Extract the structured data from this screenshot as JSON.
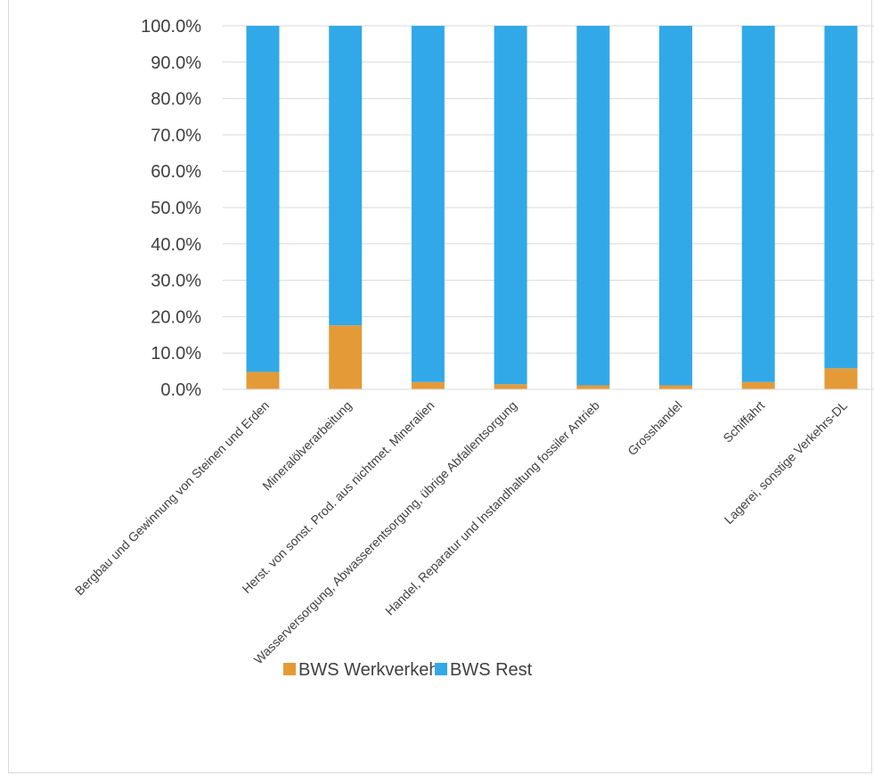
{
  "chart_data": {
    "type": "bar",
    "stacked": true,
    "categories": [
      "Bergbau und Gewinnung von Steinen und Erden",
      "Mineralölverarbeitung",
      "Herst. von sonst. Prod. aus nichtmet. Mineralien",
      "Wasserversorgung, Abwasserentsorgung, übrige Abfallentsorgung",
      "Handel, Reparatur und Instandhaltung fossiler Antrieb",
      "Grosshandel",
      "Schiffahrt",
      "Lagerei, sonstige Verkehrs-DL"
    ],
    "series": [
      {
        "name": "BWS Werkverkehr",
        "color": "#E59A38",
        "values": [
          4.8,
          17.6,
          2.0,
          1.4,
          1.1,
          1.1,
          2.0,
          5.8
        ]
      },
      {
        "name": "BWS Rest",
        "color": "#31A9E8",
        "values": [
          95.2,
          82.4,
          98.0,
          98.6,
          98.9,
          98.9,
          98.0,
          94.2
        ]
      }
    ],
    "yticks": [
      "0.0%",
      "10.0%",
      "20.0%",
      "30.0%",
      "40.0%",
      "50.0%",
      "60.0%",
      "70.0%",
      "80.0%",
      "90.0%",
      "100.0%"
    ],
    "ylim": [
      0,
      100
    ],
    "grid": true,
    "legend_position": "bottom",
    "title": "",
    "xlabel": "",
    "ylabel": ""
  }
}
